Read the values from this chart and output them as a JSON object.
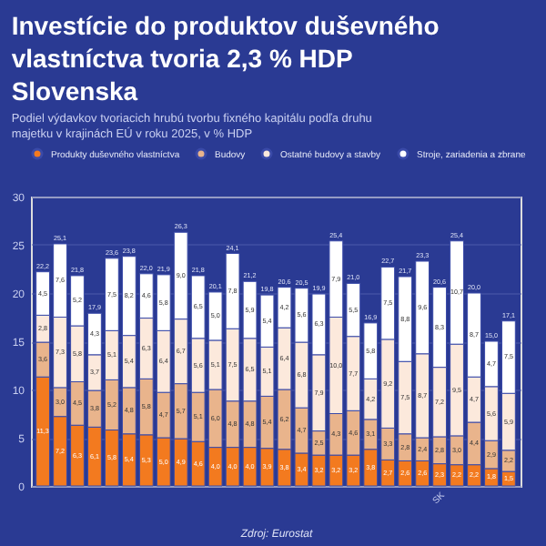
{
  "chart_data": {
    "type": "bar",
    "stacked": true,
    "title": "Investície do produktov duševného vlastníctva tvoria 2,3 % HDP Slovenska",
    "subtitle": "Podiel výdavkov tvoriacich hrubú tvorbu fixného kapitálu podľa druhu majetku v krajinách EÚ v roku 2025, v % HDP",
    "categories": [
      null,
      null,
      null,
      null,
      null,
      null,
      null,
      null,
      null,
      null,
      null,
      null,
      null,
      null,
      null,
      null,
      null,
      null,
      null,
      null,
      null,
      null,
      null,
      "SK",
      null,
      null,
      null,
      null
    ],
    "series": [
      {
        "name": "Produkty duševného vlastníctva",
        "color": "#f37a1f",
        "values": [
          11.3,
          7.2,
          6.3,
          6.1,
          5.8,
          5.4,
          5.3,
          5.0,
          4.9,
          4.6,
          4.0,
          4.0,
          4.0,
          3.9,
          3.8,
          3.4,
          3.2,
          3.2,
          3.2,
          3.8,
          2.7,
          2.6,
          2.6,
          2.3,
          2.2,
          2.2,
          1.8,
          1.5
        ],
        "value_labels": [
          "11,3",
          "7,2",
          "6,3",
          "6,1",
          "5,8",
          "5,4",
          "5,3",
          "5,0",
          "4,9",
          "4,6",
          "4,0",
          "4,0",
          "4,0",
          "3,9",
          "3,8",
          "3,4",
          "3,2",
          "3,2",
          "3,2",
          "3,8",
          "2,7",
          "2,6",
          "2,6",
          "2,3",
          "2,2",
          "2,2",
          "1,8",
          "1,5"
        ]
      },
      {
        "name": "Budovy",
        "color": "#e9b48c",
        "values": [
          3.6,
          3.0,
          4.5,
          3.8,
          5.2,
          4.8,
          5.8,
          4.7,
          5.7,
          5.1,
          6.0,
          4.8,
          4.8,
          5.4,
          6.2,
          4.7,
          2.5,
          4.3,
          4.6,
          3.1,
          3.3,
          2.8,
          2.4,
          2.8,
          3.0,
          4.4,
          2.9,
          2.2
        ],
        "value_labels": [
          "3,6",
          "3,0",
          "4,5",
          "3,8",
          "5,2",
          "4,8",
          "5,8",
          "4,7",
          "5,7",
          "5,1",
          "6,0",
          "4,8",
          "4,8",
          "5,4",
          "6,2",
          "4,7",
          "2,5",
          "4,3",
          "4,6",
          "3,1",
          "3,3",
          "2,8",
          "2,4",
          "2,8",
          "3,0",
          "4,4",
          "2,9",
          "2,2"
        ]
      },
      {
        "name": "Ostatné budovy a stavby",
        "color": "#fce9dc",
        "values": [
          2.8,
          7.3,
          5.8,
          3.7,
          5.1,
          5.4,
          6.3,
          6.4,
          6.7,
          5.6,
          5.1,
          7.5,
          6.5,
          5.1,
          6.4,
          6.8,
          7.9,
          10.0,
          7.7,
          4.2,
          9.2,
          7.5,
          8.7,
          7.2,
          9.5,
          4.7,
          5.6,
          5.9
        ],
        "value_labels": [
          "2,8",
          "7,3",
          "5,8",
          "3,7",
          "5,1",
          "5,4",
          "6,3",
          "6,4",
          "6,7",
          "5,6",
          "5,1",
          "7,5",
          "6,5",
          "5,1",
          "6,4",
          "6,8",
          "7,9",
          "10,0",
          "7,7",
          "4,2",
          "9,2",
          "7,5",
          "8,7",
          "7,2",
          "9,5",
          "4,7",
          "5,6",
          "5,9"
        ]
      },
      {
        "name": "Stroje, zariadenia a zbrane",
        "color": "#ffffff",
        "values": [
          4.5,
          7.6,
          5.2,
          4.3,
          7.5,
          8.2,
          4.6,
          5.8,
          9.0,
          6.5,
          5.0,
          7.8,
          5.9,
          5.4,
          4.2,
          5.6,
          6.3,
          7.9,
          5.5,
          5.8,
          7.5,
          8.8,
          9.6,
          8.3,
          10.7,
          8.7,
          4.7,
          7.5
        ],
        "value_labels": [
          "4,5",
          "7,6",
          "5,2",
          "4,3",
          "7,5",
          "8,2",
          "4,6",
          "5,8",
          "9,0",
          "6,5",
          "5,0",
          "7,8",
          "5,9",
          "5,4",
          "4,2",
          "5,6",
          "6,3",
          "7,9",
          "5,5",
          "5,8",
          "7,5",
          "8,8",
          "9,6",
          "8,3",
          "10,7",
          "8,7",
          "4,7",
          "7,5"
        ]
      }
    ],
    "totals": [
      "22,2",
      "25,1",
      "21,8",
      "17,9",
      "23,6",
      "23,8",
      "22,0",
      "21,9",
      "26,3",
      "21,8",
      "20,1",
      "24,1",
      "21,2",
      "19,8",
      "20,6",
      "20,5",
      "19,9",
      "25,4",
      "21,0",
      "16,9",
      "22,7",
      "21,7",
      "23,3",
      "20,6",
      "25,4",
      "20,0",
      "15,0",
      "17,1"
    ],
    "ylim": [
      0,
      30
    ],
    "yticks": [
      0,
      5,
      10,
      15,
      20,
      25,
      30
    ],
    "grid": "y",
    "legend": "top",
    "annotations": [
      "Zdroj: Eurostat"
    ]
  }
}
